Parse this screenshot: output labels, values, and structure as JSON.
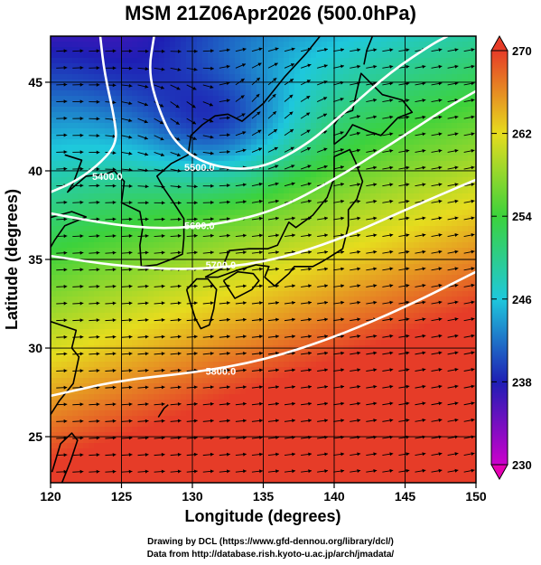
{
  "title": "MSM 21Z06Apr2026 (500.0hPa)",
  "xaxis": {
    "label": "Longitude (degrees)",
    "ticks": [
      "120",
      "125",
      "130",
      "135",
      "140",
      "145",
      "150"
    ],
    "range": [
      120,
      150
    ]
  },
  "yaxis": {
    "label": "Latitude  (degrees)",
    "ticks": [
      "25",
      "30",
      "35",
      "40",
      "45"
    ],
    "range": [
      22.4,
      47.6
    ]
  },
  "colorbar": {
    "ticks": [
      "230",
      "238",
      "246",
      "254",
      "262",
      "270"
    ],
    "range": [
      230,
      270
    ],
    "colors": [
      "#cc00cc",
      "#1e1eb4",
      "#1ec8dc",
      "#3cd23c",
      "#e6dc1e",
      "#e63c28"
    ]
  },
  "contours": {
    "label": "5500.0",
    "color": "#ffffff"
  },
  "credits": {
    "line1": "Drawing by DCL (https://www.gfd-dennou.org/library/dcl/)",
    "line2": "Data from http://database.rish.kyoto-u.ac.jp/arch/jmadata/"
  },
  "chart_data": {
    "type": "heatmap",
    "title": "MSM 21Z06Apr2026 (500.0hPa)",
    "xlabel": "Longitude (degrees)",
    "ylabel": "Latitude  (degrees)",
    "xlim": [
      120,
      150
    ],
    "ylim": [
      22.4,
      47.6
    ],
    "color_range": [
      230,
      270
    ],
    "overlays": [
      "wind vectors",
      "geopotential height contours",
      "coastlines",
      "lat/lon grid"
    ],
    "contour_labels": [
      {
        "text": "5400.0",
        "lon": 124.0,
        "lat": 39.5
      },
      {
        "text": "5500.0",
        "lon": 130.5,
        "lat": 40.0
      },
      {
        "text": "5600.0",
        "lon": 130.5,
        "lat": 36.7
      },
      {
        "text": "5700.0",
        "lon": 132.0,
        "lat": 34.5
      },
      {
        "text": "5800.0",
        "lon": 132.0,
        "lat": 28.5
      }
    ]
  }
}
